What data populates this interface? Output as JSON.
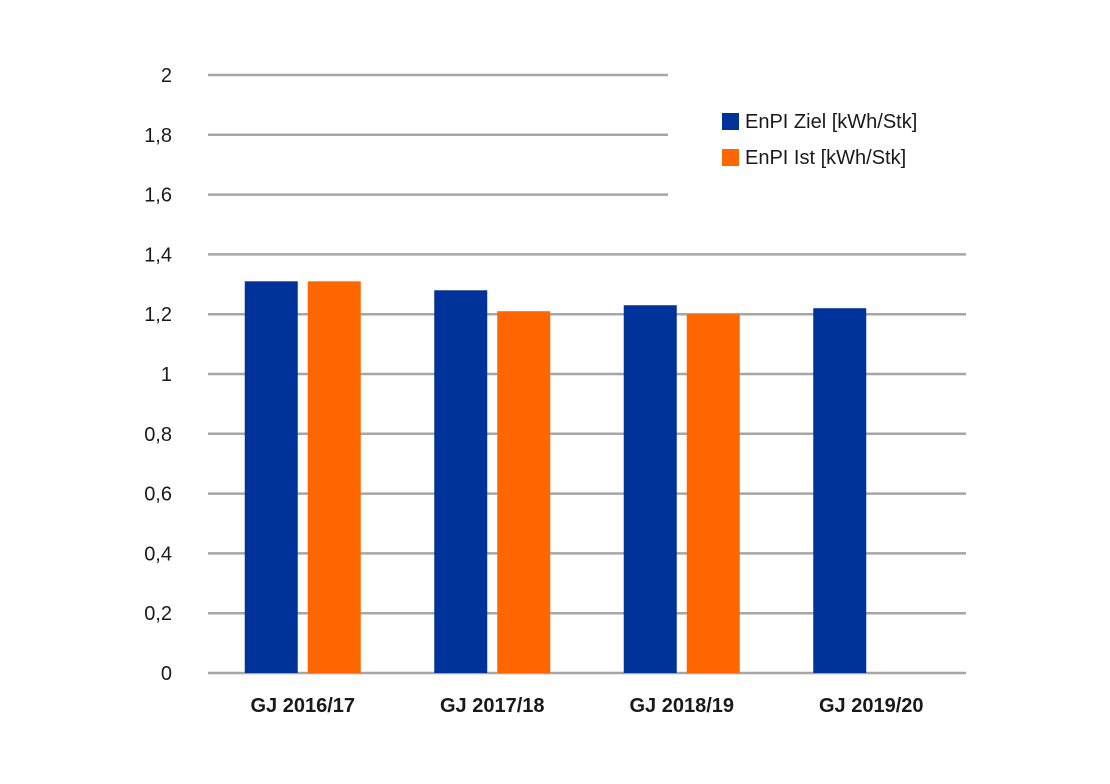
{
  "chart_data": {
    "type": "bar",
    "categories": [
      "GJ 2016/17",
      "GJ 2017/18",
      "GJ 2018/19",
      "GJ 2019/20"
    ],
    "series": [
      {
        "name": "EnPI Ziel [kWh/Stk]",
        "color": "#003399",
        "values": [
          1.31,
          1.28,
          1.23,
          1.22
        ]
      },
      {
        "name": "EnPI Ist [kWh/Stk]",
        "color": "#ff6600",
        "values": [
          1.31,
          1.21,
          1.2,
          null
        ]
      }
    ],
    "yticks": [
      "0",
      "0,2",
      "0,4",
      "0,6",
      "0,8",
      "1",
      "1,2",
      "1,4",
      "1,6",
      "1,8",
      "2"
    ],
    "ylim": [
      0,
      2
    ],
    "grid": true,
    "legend_position": "top-right",
    "title": "",
    "xlabel": "",
    "ylabel": ""
  }
}
